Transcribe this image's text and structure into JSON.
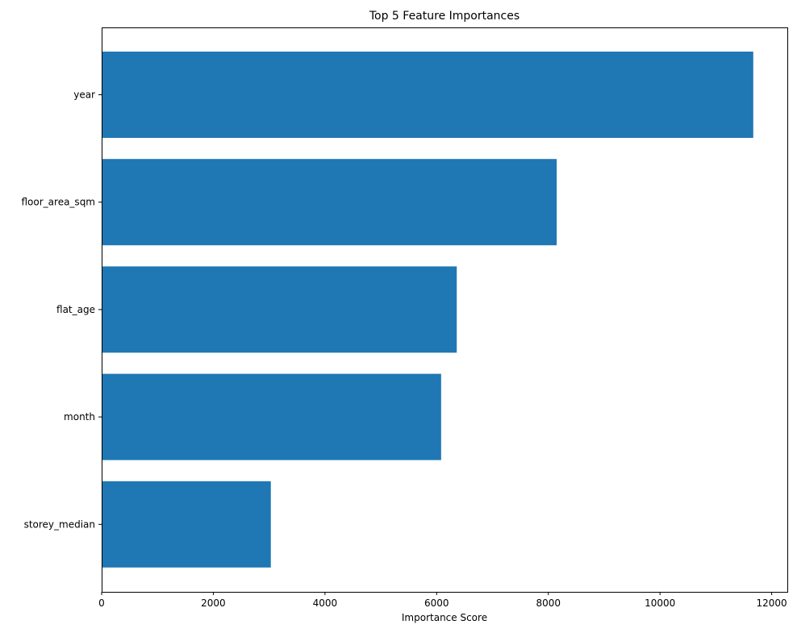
{
  "chart_data": {
    "type": "bar",
    "orientation": "horizontal",
    "title": "Top 5 Feature Importances",
    "xlabel": "Importance Score",
    "ylabel": "",
    "categories": [
      "year",
      "floor_area_sqm",
      "flat_age",
      "month",
      "storey_median"
    ],
    "values": [
      11670,
      8150,
      6360,
      6080,
      3030
    ],
    "xlim": [
      0,
      12280
    ],
    "xticks": [
      0,
      2000,
      4000,
      6000,
      8000,
      10000,
      12000
    ],
    "xtick_labels": [
      "0",
      "2000",
      "4000",
      "6000",
      "8000",
      "10000",
      "12000"
    ],
    "bar_color": "#1f77b4",
    "grid": false,
    "legend": "none"
  }
}
